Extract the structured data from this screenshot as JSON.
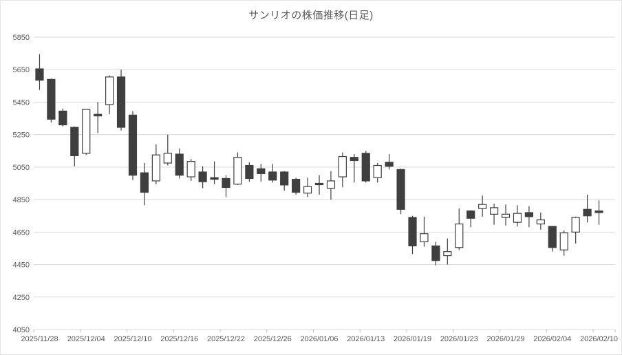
{
  "title": "サンリオの株価推移(日足)",
  "colors": {
    "up_fill": "#ffffff",
    "down_fill": "#3f3f3f",
    "candle_stroke": "#3f3f3f",
    "gridline": "#d9d9d9",
    "axis_tick": "#bfbfbf",
    "axis_text": "#595959",
    "title_text": "#595959",
    "background": "#ffffff"
  },
  "chart_data": {
    "type": "candlestick",
    "title": "サンリオの株価推移(日足)",
    "xlabel": "",
    "ylabel": "",
    "ylim": [
      4050,
      5850
    ],
    "y_tick_step": 200,
    "y_tick_labels": [
      "5850",
      "5650",
      "5450",
      "5250",
      "5050",
      "4850",
      "4650",
      "4450",
      "4250",
      "4050"
    ],
    "grid": true,
    "legend": "none",
    "x_labeled_indices": [
      0,
      4,
      8,
      12,
      16,
      20,
      24,
      28,
      32,
      36,
      40,
      44,
      48
    ],
    "x_tick_labels": [
      "2025/11/28",
      "2025/12/04",
      "2025/12/10",
      "2025/12/16",
      "2025/12/22",
      "2025/12/26",
      "2026/01/06",
      "2026/01/13",
      "2026/01/19",
      "2026/01/23",
      "2026/01/29",
      "2026/02/04",
      "2026/02/10"
    ],
    "dates": [
      "2025/11/28",
      "2025/12/01",
      "2025/12/02",
      "2025/12/03",
      "2025/12/04",
      "2025/12/05",
      "2025/12/08",
      "2025/12/09",
      "2025/12/10",
      "2025/12/11",
      "2025/12/12",
      "2025/12/15",
      "2025/12/16",
      "2025/12/17",
      "2025/12/18",
      "2025/12/19",
      "2025/12/22",
      "2025/12/23",
      "2025/12/24",
      "2025/12/25",
      "2025/12/26",
      "2025/12/29",
      "2025/12/30",
      "2026/01/05",
      "2026/01/06",
      "2026/01/07",
      "2026/01/08",
      "2026/01/09",
      "2026/01/13",
      "2026/01/14",
      "2026/01/15",
      "2026/01/16",
      "2026/01/19",
      "2026/01/20",
      "2026/01/21",
      "2026/01/22",
      "2026/01/23",
      "2026/01/26",
      "2026/01/27",
      "2026/01/28",
      "2026/01/29",
      "2026/01/30",
      "2026/02/02",
      "2026/02/03",
      "2026/02/04",
      "2026/02/05",
      "2026/02/06",
      "2026/02/09",
      "2026/02/10"
    ],
    "ohlc": [
      [
        5655,
        5745,
        5525,
        5585
      ],
      [
        5590,
        5595,
        5325,
        5345
      ],
      [
        5395,
        5410,
        5300,
        5310
      ],
      [
        5295,
        5300,
        5055,
        5120
      ],
      [
        5135,
        5405,
        5125,
        5405
      ],
      [
        5375,
        5450,
        5260,
        5365
      ],
      [
        5435,
        5615,
        5375,
        5605
      ],
      [
        5605,
        5650,
        5275,
        5295
      ],
      [
        5370,
        5395,
        4970,
        5000
      ],
      [
        5015,
        5075,
        4815,
        4895
      ],
      [
        4965,
        5190,
        4945,
        5125
      ],
      [
        5075,
        5250,
        5060,
        5135
      ],
      [
        5130,
        5165,
        4980,
        5000
      ],
      [
        4990,
        5100,
        4965,
        5085
      ],
      [
        5020,
        5055,
        4920,
        4960
      ],
      [
        4985,
        5085,
        4945,
        4975
      ],
      [
        4980,
        5000,
        4865,
        4925
      ],
      [
        4945,
        5140,
        4940,
        5110
      ],
      [
        5060,
        5080,
        4960,
        4980
      ],
      [
        5040,
        5070,
        4960,
        5010
      ],
      [
        5020,
        5070,
        4955,
        4970
      ],
      [
        5020,
        5025,
        4905,
        4940
      ],
      [
        4975,
        4985,
        4880,
        4895
      ],
      [
        4890,
        4985,
        4865,
        4930
      ],
      [
        4950,
        5000,
        4880,
        4945
      ],
      [
        4920,
        5025,
        4850,
        4965
      ],
      [
        4990,
        5140,
        4925,
        5115
      ],
      [
        5110,
        5130,
        4955,
        5090
      ],
      [
        5135,
        5150,
        4955,
        4965
      ],
      [
        4985,
        5075,
        4955,
        5060
      ],
      [
        5080,
        5130,
        5035,
        5055
      ],
      [
        5035,
        5040,
        4760,
        4790
      ],
      [
        4740,
        4750,
        4515,
        4565
      ],
      [
        4590,
        4745,
        4560,
        4640
      ],
      [
        4565,
        4590,
        4445,
        4475
      ],
      [
        4505,
        4610,
        4450,
        4530
      ],
      [
        4555,
        4795,
        4540,
        4700
      ],
      [
        4780,
        4785,
        4680,
        4735
      ],
      [
        4795,
        4875,
        4745,
        4820
      ],
      [
        4760,
        4825,
        4695,
        4800
      ],
      [
        4740,
        4820,
        4690,
        4760
      ],
      [
        4710,
        4815,
        4685,
        4765
      ],
      [
        4770,
        4810,
        4680,
        4745
      ],
      [
        4700,
        4770,
        4665,
        4725
      ],
      [
        4685,
        4685,
        4530,
        4555
      ],
      [
        4540,
        4660,
        4505,
        4645
      ],
      [
        4650,
        4745,
        4580,
        4740
      ],
      [
        4790,
        4880,
        4710,
        4750
      ],
      [
        4780,
        4845,
        4695,
        4770
      ]
    ]
  }
}
